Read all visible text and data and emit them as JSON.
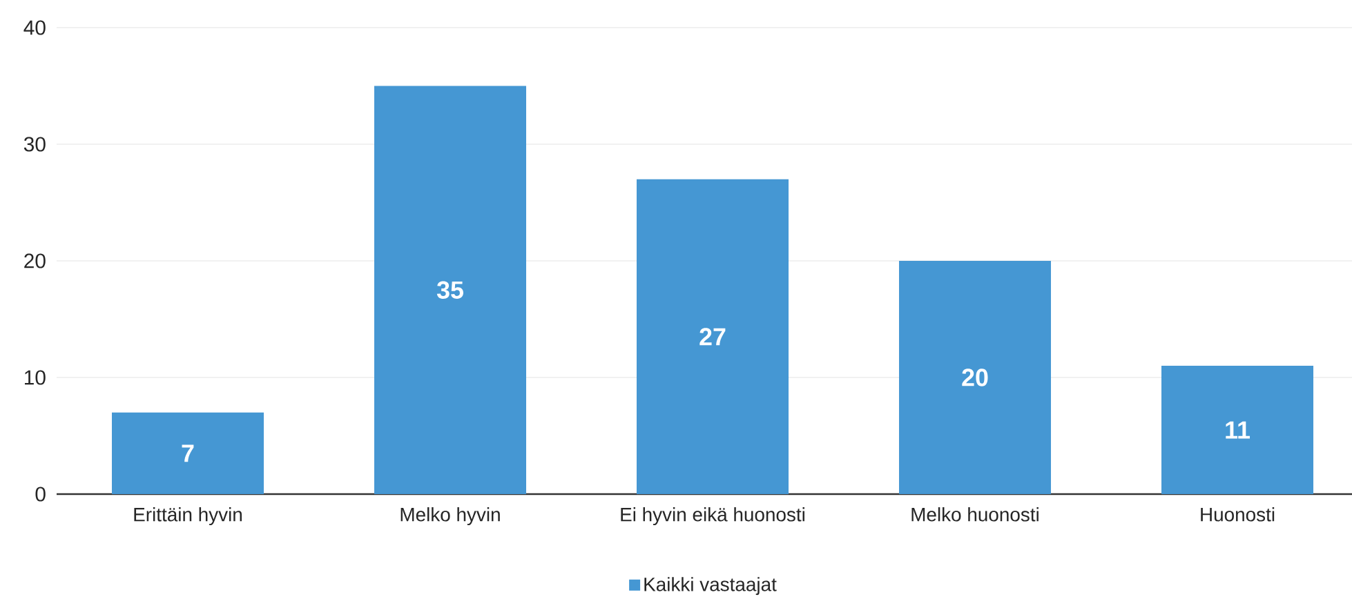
{
  "chart_data": {
    "type": "bar",
    "categories": [
      "Erittäin hyvin",
      "Melko hyvin",
      "Ei hyvin eikä huonosti",
      "Melko huonosti",
      "Huonosti"
    ],
    "series": [
      {
        "name": "Kaikki vastaajat",
        "color": "#4597d3",
        "values": [
          7,
          35,
          27,
          20,
          11
        ]
      }
    ],
    "ylim": [
      0,
      40
    ],
    "yticks": [
      0,
      10,
      20,
      30,
      40
    ],
    "grid": "y",
    "legend": "bottom",
    "data_labels": true
  }
}
